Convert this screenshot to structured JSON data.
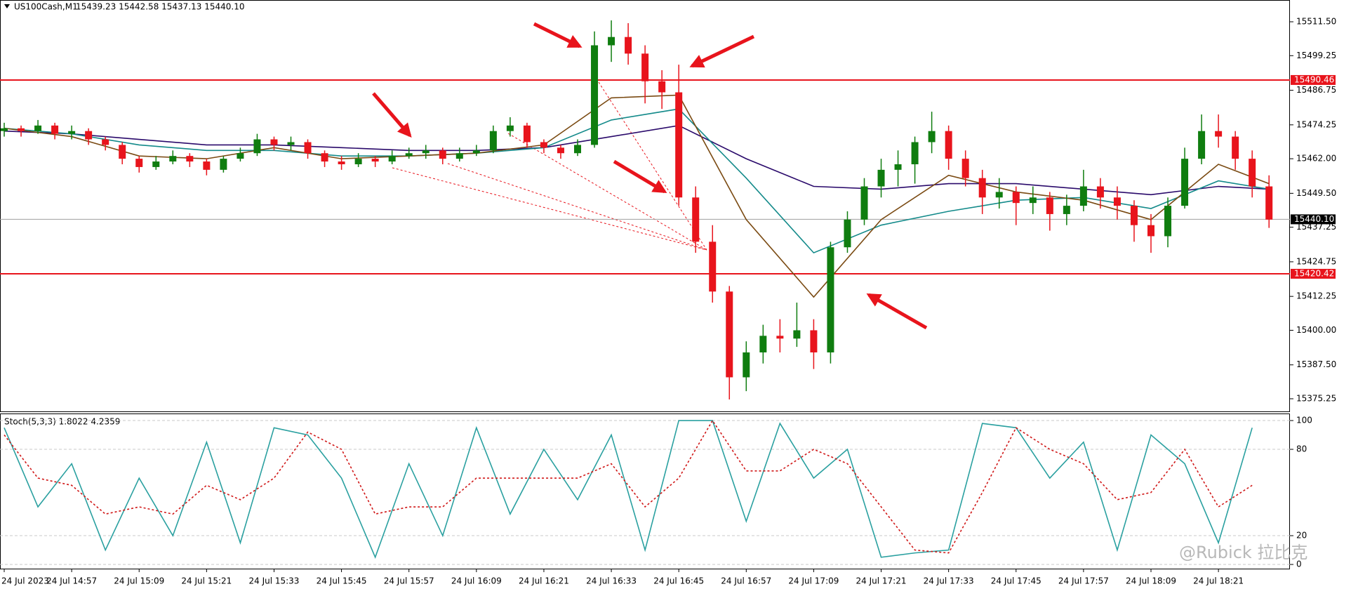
{
  "chart_data": [
    {
      "type": "candlestick",
      "title": "US100Cash,M1",
      "quote": "15439.23 15442.58 15437.13 15440.10",
      "up_color": "#0f7d0f",
      "down_color": "#e8141c",
      "candles": [
        [
          15472,
          15475,
          15470,
          15473
        ],
        [
          15473,
          15474,
          15470,
          15472
        ],
        [
          15472,
          15476,
          15471,
          15474
        ],
        [
          15474,
          15475,
          15469,
          15471
        ],
        [
          15471,
          15474,
          15469,
          15472
        ],
        [
          15472,
          15473,
          15467,
          15469
        ],
        [
          15469,
          15470,
          15465,
          15467
        ],
        [
          15467,
          15468,
          15460,
          15462
        ],
        [
          15462,
          15463,
          15457,
          15459
        ],
        [
          15459,
          15463,
          15458,
          15461
        ],
        [
          15461,
          15465,
          15460,
          15463
        ],
        [
          15463,
          15464,
          15459,
          15461
        ],
        [
          15461,
          15462,
          15456,
          15458
        ],
        [
          15458,
          15463,
          15457,
          15462
        ],
        [
          15462,
          15466,
          15461,
          15464
        ],
        [
          15464,
          15471,
          15463,
          15469
        ],
        [
          15469,
          15470,
          15465,
          15467
        ],
        [
          15467,
          15470,
          15465,
          15468
        ],
        [
          15468,
          15469,
          15462,
          15464
        ],
        [
          15464,
          15465,
          15459,
          15461
        ],
        [
          15461,
          15463,
          15458,
          15460
        ],
        [
          15460,
          15464,
          15459,
          15462
        ],
        [
          15462,
          15463,
          15459,
          15461
        ],
        [
          15461,
          15465,
          15460,
          15463
        ],
        [
          15463,
          15466,
          15462,
          15464
        ],
        [
          15464,
          15467,
          15462,
          15465
        ],
        [
          15465,
          15466,
          15460,
          15462
        ],
        [
          15462,
          15466,
          15461,
          15464
        ],
        [
          15464,
          15467,
          15463,
          15465
        ],
        [
          15465,
          15474,
          15464,
          15472
        ],
        [
          15472,
          15477,
          15470,
          15474
        ],
        [
          15474,
          15475,
          15466,
          15468
        ],
        [
          15468,
          15469,
          15464,
          15466
        ],
        [
          15466,
          15467,
          15462,
          15464
        ],
        [
          15464,
          15469,
          15463,
          15467
        ],
        [
          15467,
          15508,
          15466,
          15503
        ],
        [
          15503,
          15512,
          15497,
          15506
        ],
        [
          15506,
          15511,
          15496,
          15500
        ],
        [
          15500,
          15503,
          15482,
          15490
        ],
        [
          15490,
          15494,
          15480,
          15486
        ],
        [
          15486,
          15496,
          15445,
          15448
        ],
        [
          15448,
          15452,
          15428,
          15432
        ],
        [
          15432,
          15438,
          15410,
          15414
        ],
        [
          15414,
          15416,
          15375,
          15383
        ],
        [
          15383,
          15396,
          15378,
          15392
        ],
        [
          15392,
          15402,
          15388,
          15398
        ],
        [
          15398,
          15404,
          15392,
          15397
        ],
        [
          15397,
          15410,
          15394,
          15400
        ],
        [
          15400,
          15404,
          15386,
          15392
        ],
        [
          15392,
          15432,
          15388,
          15430
        ],
        [
          15430,
          15443,
          15428,
          15440
        ],
        [
          15440,
          15455,
          15438,
          15452
        ],
        [
          15452,
          15462,
          15448,
          15458
        ],
        [
          15458,
          15465,
          15452,
          15460
        ],
        [
          15460,
          15470,
          15453,
          15468
        ],
        [
          15468,
          15479,
          15464,
          15472
        ],
        [
          15472,
          15474,
          15458,
          15462
        ],
        [
          15462,
          15465,
          15452,
          15455
        ],
        [
          15455,
          15458,
          15442,
          15448
        ],
        [
          15448,
          15455,
          15444,
          15450
        ],
        [
          15450,
          15452,
          15438,
          15446
        ],
        [
          15446,
          15452,
          15442,
          15448
        ],
        [
          15448,
          15450,
          15436,
          15442
        ],
        [
          15442,
          15449,
          15438,
          15445
        ],
        [
          15445,
          15458,
          15443,
          15452
        ],
        [
          15452,
          15455,
          15444,
          15448
        ],
        [
          15448,
          15452,
          15440,
          15445
        ],
        [
          15445,
          15447,
          15432,
          15438
        ],
        [
          15438,
          15442,
          15428,
          15434
        ],
        [
          15434,
          15448,
          15430,
          15445
        ],
        [
          15445,
          15466,
          15444,
          15462
        ],
        [
          15462,
          15478,
          15460,
          15472
        ],
        [
          15472,
          15478,
          15466,
          15470
        ],
        [
          15470,
          15472,
          15458,
          15462
        ],
        [
          15462,
          15465,
          15448,
          15452
        ],
        [
          15452,
          15456,
          15437,
          15440
        ]
      ],
      "series": [
        {
          "color": "#2a0a6b",
          "x": [
            0,
            4,
            8,
            12,
            16,
            20,
            24,
            28,
            32,
            36,
            40,
            44,
            48,
            52,
            56,
            60,
            64,
            68,
            72,
            75
          ],
          "values": [
            15472,
            15471,
            15469,
            15467,
            15467,
            15466,
            15465,
            15465,
            15466,
            15470,
            15474,
            15462,
            15452,
            15451,
            15453,
            15453,
            15451,
            15449,
            15452,
            15451
          ]
        },
        {
          "color": "#138a8a",
          "x": [
            0,
            4,
            8,
            12,
            16,
            20,
            24,
            28,
            32,
            36,
            40,
            44,
            48,
            52,
            56,
            60,
            64,
            68,
            72,
            75
          ],
          "values": [
            15473,
            15471,
            15467,
            15465,
            15465,
            15463,
            15463,
            15464,
            15466,
            15476,
            15480,
            15455,
            15428,
            15438,
            15443,
            15447,
            15448,
            15444,
            15454,
            15451
          ]
        },
        {
          "color": "#7a4a12",
          "x": [
            0,
            4,
            8,
            12,
            16,
            20,
            24,
            28,
            32,
            36,
            40,
            44,
            48,
            52,
            56,
            60,
            64,
            68,
            72,
            75
          ],
          "values": [
            15473,
            15470,
            15463,
            15462,
            15466,
            15462,
            15463,
            15464,
            15467,
            15484,
            15485,
            15440,
            15412,
            15440,
            15456,
            15450,
            15447,
            15440,
            15460,
            15453
          ]
        }
      ],
      "hlines": [
        {
          "value": 15490.46,
          "label": "15490.46",
          "color": "#e8141c"
        },
        {
          "value": 15420.42,
          "label": "15420.42",
          "color": "#e8141c"
        }
      ],
      "price_line": {
        "value": 15440.1,
        "label": "15440.10"
      },
      "xlim": [
        -0.25,
        76.24
      ],
      "ylim": [
        15370.43,
        15519.37
      ],
      "yticks": [
        {
          "value": 15511.5,
          "label": "15511.50"
        },
        {
          "value": 15499.25,
          "label": "15499.25"
        },
        {
          "value": 15486.75,
          "label": "15486.75"
        },
        {
          "value": 15474.25,
          "label": "15474.25"
        },
        {
          "value": 15462,
          "label": "15462.00"
        },
        {
          "value": 15449.5,
          "label": "15449.50"
        },
        {
          "value": 15437.25,
          "label": "15437.25"
        },
        {
          "value": 15424.75,
          "label": "15424.75"
        },
        {
          "value": 15412.25,
          "label": "15412.25"
        },
        {
          "value": 15400,
          "label": "15400.00"
        },
        {
          "value": 15387.5,
          "label": "15387.50"
        },
        {
          "value": 15375.25,
          "label": "15375.25"
        }
      ],
      "grid": false
    },
    {
      "type": "line",
      "title": "Stoch(5,3,3) 1.8022 4.2359",
      "series": [
        {
          "color": "#2aa0a0",
          "dash": false,
          "x": [
            0,
            2,
            4,
            6,
            8,
            10,
            12,
            14,
            16,
            18,
            20,
            22,
            24,
            26,
            28,
            30,
            32,
            34,
            36,
            38,
            40,
            42,
            44,
            46,
            48,
            50,
            52,
            54,
            56,
            58,
            60,
            62,
            64,
            66,
            68,
            70,
            72,
            74
          ],
          "values": [
            95,
            40,
            70,
            10,
            60,
            20,
            85,
            15,
            95,
            90,
            60,
            5,
            70,
            20,
            95,
            35,
            80,
            45,
            90,
            10,
            100,
            100,
            30,
            98,
            60,
            80,
            5,
            8,
            10,
            98,
            95,
            60,
            85,
            10,
            90,
            70,
            15,
            95
          ]
        },
        {
          "color": "#d01818",
          "dash": true,
          "x": [
            0,
            2,
            4,
            6,
            8,
            10,
            12,
            14,
            16,
            18,
            20,
            22,
            24,
            26,
            28,
            30,
            32,
            34,
            36,
            38,
            40,
            42,
            44,
            46,
            48,
            50,
            52,
            54,
            56,
            58,
            60,
            62,
            64,
            66,
            68,
            70,
            72,
            74
          ],
          "values": [
            90,
            60,
            55,
            35,
            40,
            35,
            55,
            45,
            60,
            92,
            80,
            35,
            40,
            40,
            60,
            60,
            60,
            60,
            70,
            40,
            60,
            100,
            65,
            65,
            80,
            70,
            40,
            10,
            8,
            50,
            95,
            80,
            70,
            45,
            50,
            80,
            40,
            55
          ]
        }
      ],
      "xlim": [
        -0.25,
        76.24
      ],
      "ylim": [
        -3.4,
        104.9
      ],
      "yticks": [
        0,
        20,
        80,
        100
      ],
      "grid": true,
      "xticks": [
        {
          "value": 0,
          "label": "24 Jul 2023"
        },
        {
          "value": 4,
          "label": "24 Jul 14:57"
        },
        {
          "value": 8,
          "label": "24 Jul 15:09"
        },
        {
          "value": 12,
          "label": "24 Jul 15:21"
        },
        {
          "value": 16,
          "label": "24 Jul 15:33"
        },
        {
          "value": 20,
          "label": "24 Jul 15:45"
        },
        {
          "value": 24,
          "label": "24 Jul 15:57"
        },
        {
          "value": 28,
          "label": "24 Jul 16:09"
        },
        {
          "value": 32,
          "label": "24 Jul 16:21"
        },
        {
          "value": 36,
          "label": "24 Jul 16:33"
        },
        {
          "value": 40,
          "label": "24 Jul 16:45"
        },
        {
          "value": 44,
          "label": "24 Jul 16:57"
        },
        {
          "value": 48,
          "label": "24 Jul 17:09"
        },
        {
          "value": 52,
          "label": "24 Jul 17:21"
        },
        {
          "value": 56,
          "label": "24 Jul 17:33"
        },
        {
          "value": 60,
          "label": "24 Jul 17:45"
        },
        {
          "value": 64,
          "label": "24 Jul 17:57"
        },
        {
          "value": 68,
          "label": "24 Jul 18:09"
        },
        {
          "value": 72,
          "label": "24 Jul 18:21"
        }
      ]
    }
  ],
  "watermark": "@Rubick 拉比克"
}
